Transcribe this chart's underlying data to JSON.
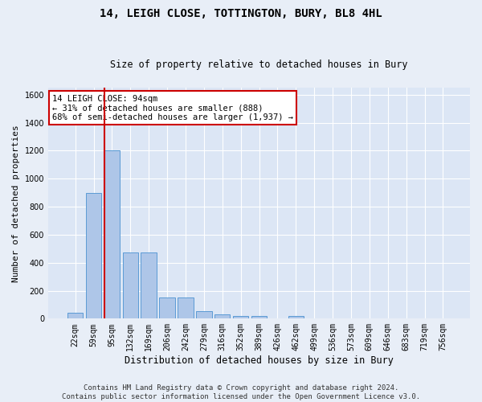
{
  "title": "14, LEIGH CLOSE, TOTTINGTON, BURY, BL8 4HL",
  "subtitle": "Size of property relative to detached houses in Bury",
  "xlabel": "Distribution of detached houses by size in Bury",
  "ylabel": "Number of detached properties",
  "categories": [
    "22sqm",
    "59sqm",
    "95sqm",
    "132sqm",
    "169sqm",
    "206sqm",
    "242sqm",
    "279sqm",
    "316sqm",
    "352sqm",
    "389sqm",
    "426sqm",
    "462sqm",
    "499sqm",
    "536sqm",
    "573sqm",
    "609sqm",
    "646sqm",
    "683sqm",
    "719sqm",
    "756sqm"
  ],
  "values": [
    40,
    900,
    1200,
    470,
    470,
    150,
    150,
    55,
    30,
    20,
    20,
    0,
    20,
    0,
    0,
    0,
    0,
    0,
    0,
    0,
    0
  ],
  "bar_color": "#aec6e8",
  "bar_edge_color": "#5b9bd5",
  "ylim": [
    0,
    1650
  ],
  "yticks": [
    0,
    200,
    400,
    600,
    800,
    1000,
    1200,
    1400,
    1600
  ],
  "vline_x_index": 2,
  "vline_color": "#cc0000",
  "annotation_text": "14 LEIGH CLOSE: 94sqm\n← 31% of detached houses are smaller (888)\n68% of semi-detached houses are larger (1,937) →",
  "annotation_box_color": "#cc0000",
  "footer_line1": "Contains HM Land Registry data © Crown copyright and database right 2024.",
  "footer_line2": "Contains public sector information licensed under the Open Government Licence v3.0.",
  "bg_color": "#e8eef7",
  "plot_bg_color": "#dce6f5",
  "grid_color": "#ffffff",
  "title_fontsize": 10,
  "subtitle_fontsize": 8.5,
  "tick_fontsize": 7,
  "ylabel_fontsize": 8,
  "xlabel_fontsize": 8.5,
  "footer_fontsize": 6.5,
  "annotation_fontsize": 7.5
}
